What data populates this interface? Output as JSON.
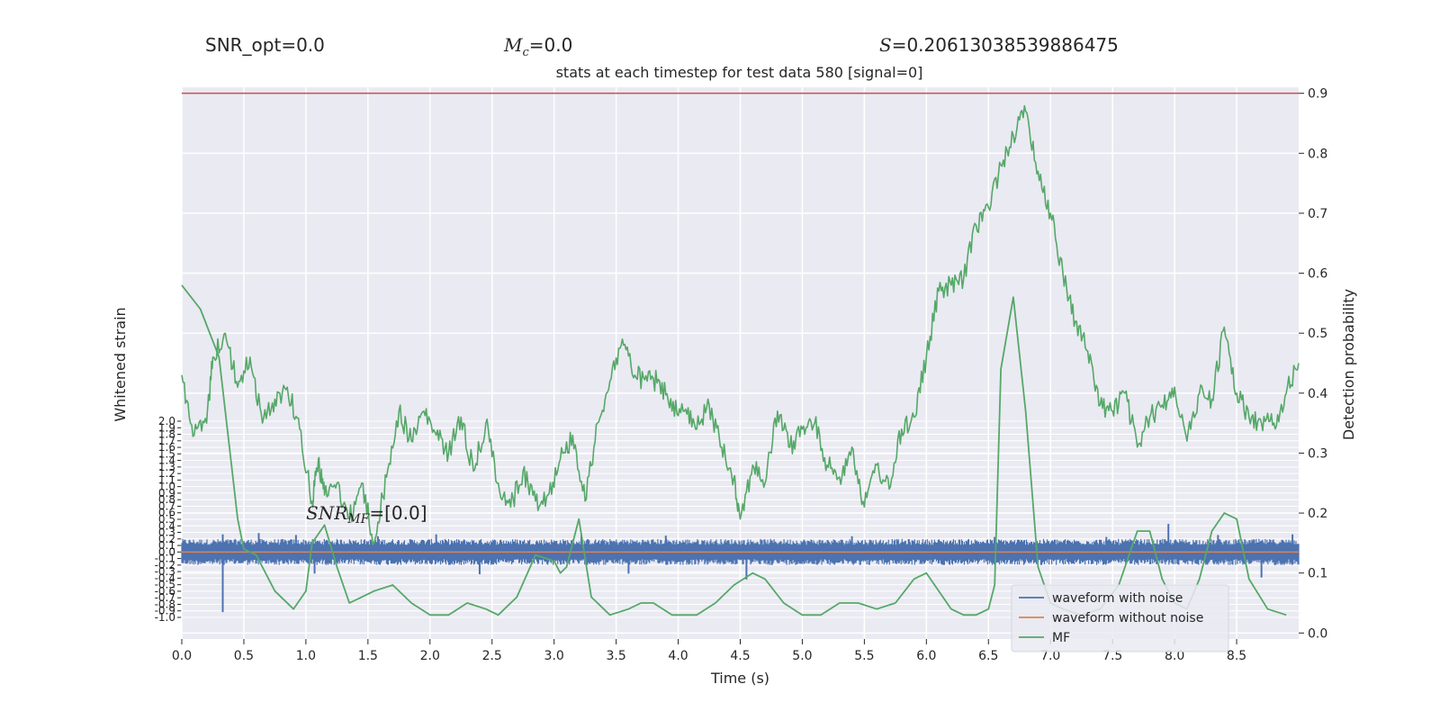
{
  "header": {
    "snr_opt": "SNR_opt=0.0",
    "mc_symbol": "M",
    "mc_sub": "c",
    "mc_value": "=0.0",
    "s_symbol": "S",
    "s_value": "=0.20613038539886475"
  },
  "chart_data": {
    "type": "line",
    "title": "stats at each timestep for test data 580 [signal=0]",
    "xlabel": "Time (s)",
    "ylabel_left": "Whitened strain",
    "ylabel_right": "Detection probability",
    "xlim": [
      0.0,
      9.0
    ],
    "ylim_left": [
      -1.0,
      2.0
    ],
    "ylim_right": [
      -0.01,
      0.91
    ],
    "x_ticks": [
      "0.0",
      "0.5",
      "1.0",
      "1.5",
      "2.0",
      "2.5",
      "3.0",
      "3.5",
      "4.0",
      "4.5",
      "5.0",
      "5.5",
      "6.0",
      "6.5",
      "7.0",
      "7.5",
      "8.0",
      "8.5"
    ],
    "y_left_ticks": [
      "-1.0",
      "-0.9",
      "-0.8",
      "-0.7",
      "-0.6",
      "-0.5",
      "-0.4",
      "-0.3",
      "-0.2",
      "-0.1",
      "0.0",
      "0.1",
      "0.2",
      "0.3",
      "0.4",
      "0.5",
      "0.6",
      "0.7",
      "0.8",
      "0.9",
      "1.0",
      "1.1",
      "1.2",
      "1.3",
      "1.4",
      "1.5",
      "1.6",
      "1.7",
      "1.8",
      "1.9",
      "2.0"
    ],
    "y_right_ticks": [
      "0.0",
      "0.1",
      "0.2",
      "0.3",
      "0.4",
      "0.5",
      "0.6",
      "0.7",
      "0.8",
      "0.9"
    ],
    "grid": true,
    "legend_position": "bottom-right",
    "annotation": {
      "prefix": "SNR",
      "sub": "MF",
      "value": "=[0.0]"
    },
    "threshold": {
      "value": 0.9,
      "color": "#c44e52"
    },
    "series": [
      {
        "name": "waveform with noise",
        "axis": "left",
        "color": "#4c72b0",
        "noise_band": [
          -0.2,
          0.2
        ],
        "spikes": [
          [
            0.33,
            0.27
          ],
          [
            0.62,
            0.29
          ],
          [
            0.92,
            0.26
          ],
          [
            1.07,
            -0.33
          ],
          [
            1.58,
            0.24
          ],
          [
            2.05,
            0.27
          ],
          [
            2.4,
            -0.34
          ],
          [
            3.22,
            0.26
          ],
          [
            3.6,
            -0.33
          ],
          [
            3.9,
            0.25
          ],
          [
            0.33,
            -0.92
          ],
          [
            4.55,
            -0.42
          ],
          [
            5.4,
            0.24
          ],
          [
            6.55,
            0.23
          ],
          [
            7.45,
            0.23
          ],
          [
            7.95,
            0.43
          ],
          [
            8.35,
            0.26
          ],
          [
            8.7,
            -0.39
          ],
          [
            8.95,
            0.27
          ]
        ]
      },
      {
        "name": "waveform without noise",
        "axis": "left",
        "color": "#dd8452",
        "value": 0.0
      },
      {
        "name": "MF",
        "axis": "right",
        "color": "#55a868",
        "x": [
          0.0,
          0.15,
          0.3,
          0.45,
          0.5,
          0.6,
          0.75,
          0.9,
          1.0,
          1.05,
          1.15,
          1.25,
          1.35,
          1.45,
          1.55,
          1.7,
          1.85,
          2.0,
          2.15,
          2.3,
          2.45,
          2.55,
          2.7,
          2.85,
          3.0,
          3.05,
          3.1,
          3.2,
          3.3,
          3.45,
          3.6,
          3.7,
          3.8,
          3.95,
          4.15,
          4.3,
          4.45,
          4.6,
          4.7,
          4.85,
          5.0,
          5.15,
          5.3,
          5.45,
          5.6,
          5.75,
          5.9,
          6.0,
          6.1,
          6.2,
          6.3,
          6.4,
          6.5,
          6.55,
          6.6,
          6.7,
          6.8,
          6.9,
          7.0,
          7.1,
          7.25,
          7.4,
          7.55,
          7.7,
          7.8,
          7.9,
          8.0,
          8.1,
          8.2,
          8.3,
          8.4,
          8.5,
          8.6,
          8.75,
          8.9
        ],
        "y": [
          0.58,
          0.54,
          0.46,
          0.19,
          0.14,
          0.13,
          0.07,
          0.04,
          0.07,
          0.15,
          0.18,
          0.11,
          0.05,
          0.06,
          0.07,
          0.08,
          0.05,
          0.03,
          0.03,
          0.05,
          0.04,
          0.03,
          0.06,
          0.13,
          0.12,
          0.1,
          0.11,
          0.19,
          0.06,
          0.03,
          0.04,
          0.05,
          0.05,
          0.03,
          0.03,
          0.05,
          0.08,
          0.1,
          0.09,
          0.05,
          0.03,
          0.03,
          0.05,
          0.05,
          0.04,
          0.05,
          0.09,
          0.1,
          0.07,
          0.04,
          0.03,
          0.03,
          0.04,
          0.08,
          0.44,
          0.56,
          0.37,
          0.11,
          0.05,
          0.04,
          0.03,
          0.04,
          0.08,
          0.17,
          0.17,
          0.09,
          0.05,
          0.04,
          0.09,
          0.17,
          0.2,
          0.19,
          0.09,
          0.04,
          0.03
        ]
      },
      {
        "name": "detection probability",
        "axis": "right",
        "color": "#55a868",
        "x": [
          0.0,
          0.1,
          0.2,
          0.25,
          0.35,
          0.45,
          0.55,
          0.65,
          0.75,
          0.85,
          0.95,
          1.05,
          1.1,
          1.15,
          1.25,
          1.35,
          1.45,
          1.55,
          1.65,
          1.75,
          1.85,
          1.95,
          2.05,
          2.15,
          2.25,
          2.35,
          2.45,
          2.55,
          2.65,
          2.75,
          2.85,
          2.95,
          3.05,
          3.15,
          3.25,
          3.35,
          3.45,
          3.55,
          3.65,
          3.75,
          3.85,
          3.95,
          4.05,
          4.15,
          4.25,
          4.35,
          4.45,
          4.5,
          4.6,
          4.7,
          4.8,
          4.9,
          5.0,
          5.1,
          5.2,
          5.3,
          5.4,
          5.5,
          5.6,
          5.7,
          5.8,
          5.9,
          6.0,
          6.1,
          6.2,
          6.3,
          6.4,
          6.5,
          6.6,
          6.7,
          6.8,
          6.9,
          7.0,
          7.1,
          7.2,
          7.3,
          7.4,
          7.5,
          7.6,
          7.7,
          7.8,
          7.9,
          8.0,
          8.1,
          8.2,
          8.3,
          8.4,
          8.5,
          8.6,
          8.7,
          8.8,
          8.9,
          9.0
        ],
        "y": [
          0.43,
          0.33,
          0.35,
          0.46,
          0.5,
          0.41,
          0.46,
          0.35,
          0.39,
          0.41,
          0.34,
          0.22,
          0.29,
          0.23,
          0.25,
          0.19,
          0.25,
          0.15,
          0.26,
          0.37,
          0.32,
          0.37,
          0.33,
          0.3,
          0.36,
          0.27,
          0.35,
          0.25,
          0.21,
          0.27,
          0.22,
          0.23,
          0.29,
          0.33,
          0.22,
          0.35,
          0.42,
          0.49,
          0.43,
          0.42,
          0.42,
          0.37,
          0.37,
          0.34,
          0.38,
          0.31,
          0.26,
          0.19,
          0.28,
          0.25,
          0.37,
          0.31,
          0.34,
          0.35,
          0.28,
          0.26,
          0.31,
          0.21,
          0.28,
          0.24,
          0.34,
          0.36,
          0.46,
          0.57,
          0.58,
          0.59,
          0.68,
          0.71,
          0.78,
          0.83,
          0.87,
          0.77,
          0.7,
          0.6,
          0.52,
          0.47,
          0.38,
          0.37,
          0.4,
          0.31,
          0.36,
          0.38,
          0.41,
          0.32,
          0.4,
          0.39,
          0.51,
          0.4,
          0.36,
          0.35,
          0.35,
          0.4,
          0.45
        ]
      }
    ]
  }
}
